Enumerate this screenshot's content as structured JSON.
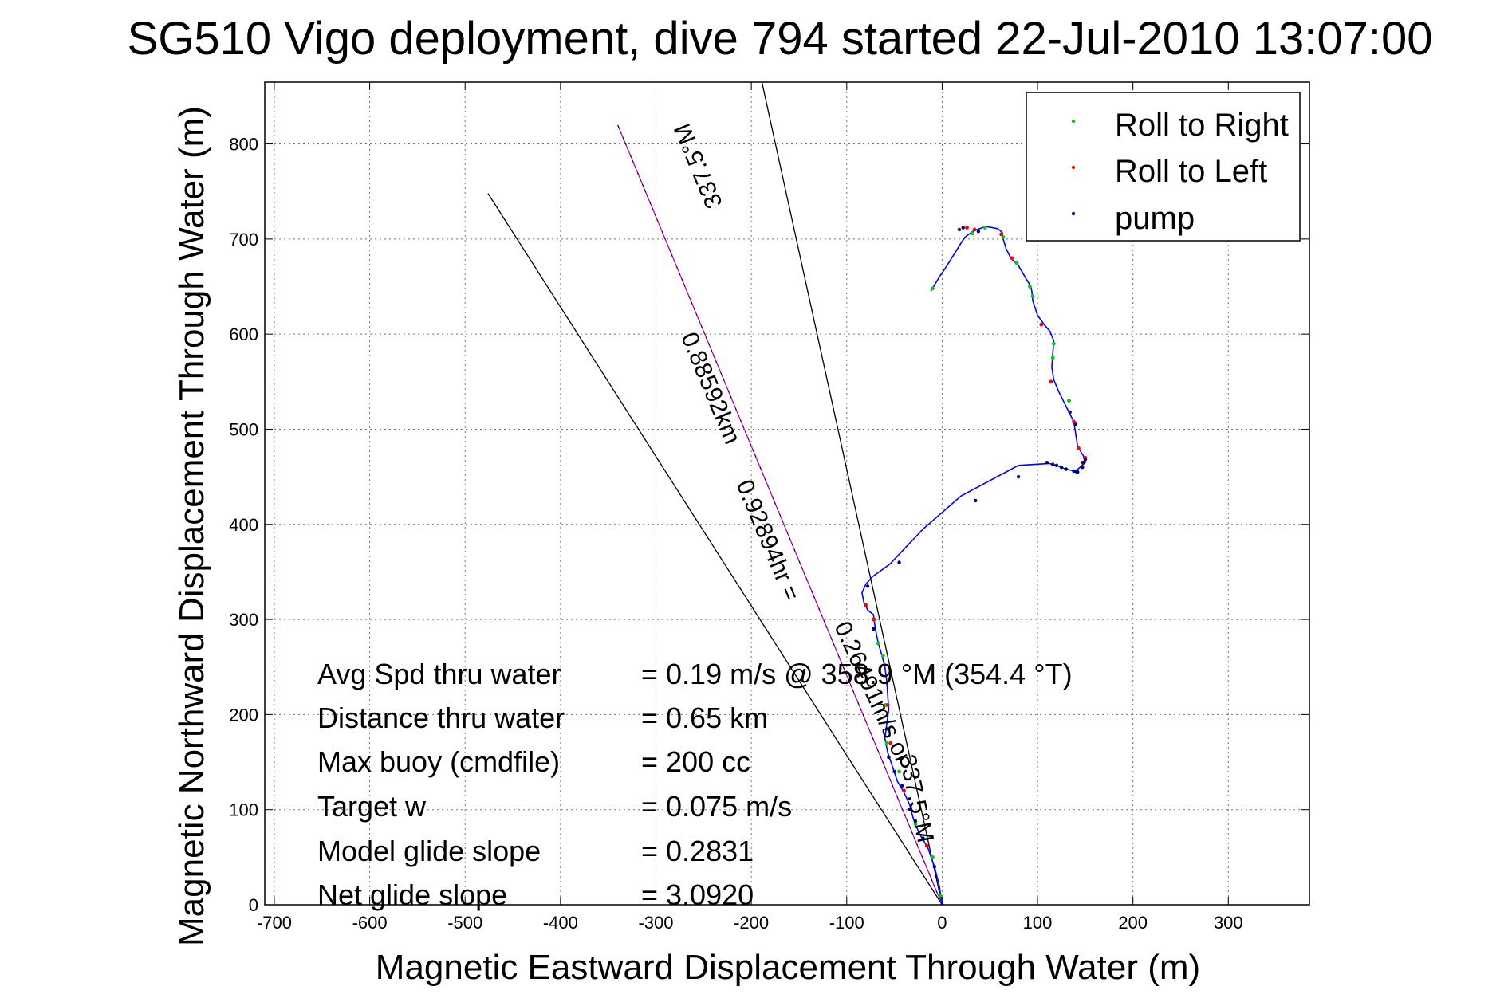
{
  "chart_data": {
    "type": "scatter",
    "title": "SG510 Vigo deployment, dive 794 started 22-Jul-2010 13:07:00",
    "xlabel": "Magnetic Eastward Displacement Through Water (m)",
    "ylabel": "Magnetic Northward Displacement Through Water (m)",
    "xlim": [
      -710,
      385
    ],
    "ylim": [
      0,
      865
    ],
    "xticks": [
      -700,
      -600,
      -500,
      -400,
      -300,
      -200,
      -100,
      0,
      100,
      200,
      300
    ],
    "yticks": [
      0,
      100,
      200,
      300,
      400,
      500,
      600,
      700,
      800
    ],
    "grid": "on",
    "legend_position": "top-right",
    "legend": [
      "Roll to Right",
      "Roll to Left",
      "pump"
    ],
    "colors": {
      "track": "#0000ff",
      "roll_right": "#00cc00",
      "roll_left": "#ff0000",
      "pump": "#000080",
      "heading_line": "#000000",
      "predicted_line": "#cc00cc"
    },
    "track": {
      "x": [
        0,
        -3,
        -8,
        -15,
        -24,
        -30,
        -34,
        -40,
        -47,
        -52,
        -57,
        -60,
        -58,
        -56,
        -57,
        -58,
        -60,
        -63,
        -66,
        -68,
        -70,
        -72,
        -78,
        -82,
        -84,
        -80,
        -73,
        -55,
        -20,
        20,
        80,
        112,
        120,
        130,
        140,
        150,
        148,
        142,
        140,
        138,
        132,
        127,
        122,
        117,
        115,
        116,
        117,
        113,
        107,
        100,
        95,
        94,
        93,
        87,
        80,
        72,
        67,
        64,
        63,
        58,
        47,
        42,
        37,
        32,
        28,
        24,
        20,
        15,
        5,
        -3,
        -12
      ],
      "y": [
        0,
        20,
        40,
        60,
        75,
        90,
        105,
        118,
        130,
        145,
        160,
        175,
        190,
        205,
        220,
        235,
        250,
        262,
        272,
        280,
        290,
        305,
        310,
        318,
        328,
        337,
        345,
        358,
        395,
        430,
        462,
        464,
        462,
        458,
        456,
        465,
        472,
        482,
        495,
        508,
        520,
        530,
        540,
        552,
        565,
        580,
        593,
        603,
        610,
        620,
        635,
        645,
        650,
        660,
        672,
        680,
        690,
        700,
        707,
        711,
        713,
        712,
        710,
        708,
        705,
        702,
        696,
        688,
        672,
        660,
        645
      ]
    },
    "roll_right_points": {
      "x": [
        -2,
        -10,
        -28,
        -45,
        -58,
        -59,
        -67,
        -71,
        -62,
        133,
        141,
        117,
        116,
        95,
        92,
        78,
        64,
        45,
        32,
        -10
      ],
      "y": [
        10,
        50,
        85,
        140,
        170,
        210,
        275,
        300,
        262,
        530,
        455,
        590,
        575,
        640,
        650,
        675,
        702,
        712,
        706,
        648
      ]
    },
    "roll_left_points": {
      "x": [
        -16,
        -40,
        -54,
        -57,
        -72,
        -80,
        147,
        150,
        143,
        138,
        114,
        104,
        73,
        62,
        34,
        26
      ],
      "y": [
        62,
        120,
        170,
        210,
        300,
        315,
        465,
        470,
        480,
        508,
        550,
        610,
        680,
        705,
        710,
        712
      ],
      "markers_only": true
    },
    "pump_points": {
      "x": [
        0,
        -8,
        -20,
        -28,
        -34,
        -42,
        -50,
        -56,
        -58,
        -72,
        -78,
        -45,
        35,
        80,
        110,
        116,
        120,
        125,
        130,
        138,
        140,
        142,
        147,
        148,
        150,
        140,
        134,
        38,
        22,
        18
      ],
      "y": [
        0,
        40,
        70,
        88,
        100,
        125,
        140,
        155,
        185,
        290,
        335,
        360,
        425,
        450,
        465,
        463,
        462,
        460,
        458,
        456,
        456,
        455,
        460,
        465,
        468,
        505,
        518,
        708,
        712,
        710
      ]
    },
    "heading_lines": [
      {
        "x": [
          0,
          -476
        ],
        "y": [
          0,
          748
        ]
      },
      {
        "x": [
          0,
          -190
        ],
        "y": [
          0,
          870
        ]
      }
    ],
    "predicted_line": {
      "x": [
        0,
        -340
      ],
      "y": [
        0,
        820
      ]
    },
    "annotations": [
      {
        "text": "337.5°M",
        "x": -248,
        "y": 780
      },
      {
        "text": "0.88592km",
        "x": -250,
        "y": 540
      },
      {
        "text": "0.92894hr =",
        "x": -190,
        "y": 380
      },
      {
        "text": "0.26491m/s or",
        "x": -80,
        "y": 220
      },
      {
        "text": "337.5°M",
        "x": -35,
        "y": 110
      }
    ],
    "stats": [
      {
        "label": "Avg Spd thru water",
        "value": "=  0.19 m/s @ 358.9 °M (354.4 °T)"
      },
      {
        "label": "Distance thru water",
        "value": "=  0.65 km"
      },
      {
        "label": "Max buoy (cmdfile)",
        "value": "= 200 cc"
      },
      {
        "label": "Target w",
        "value": "= 0.075 m/s"
      },
      {
        "label": "Model glide slope",
        "value": "= 0.2831"
      },
      {
        "label": "Net glide slope",
        "value": "= 3.0920"
      }
    ]
  }
}
